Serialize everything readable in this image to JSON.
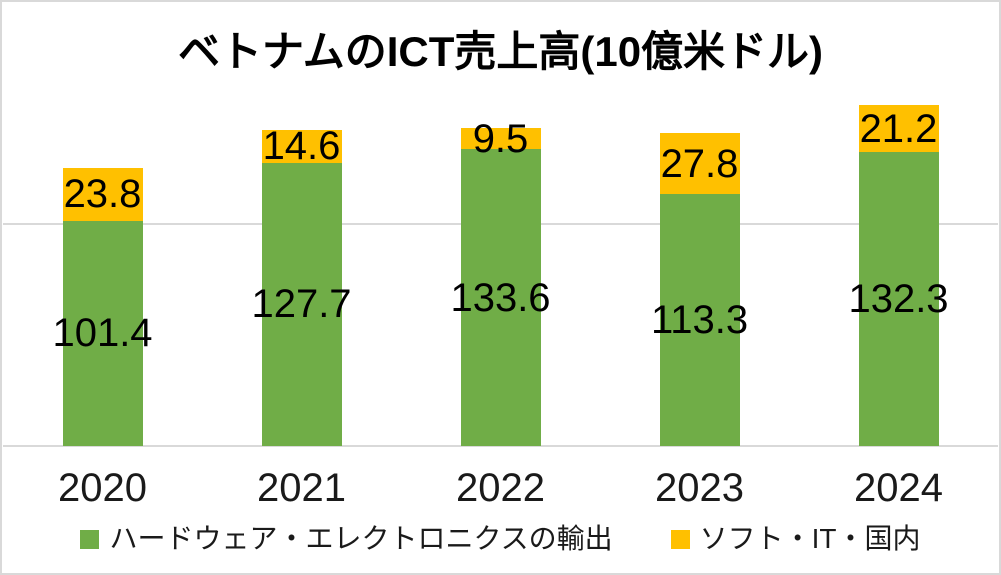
{
  "title": "ベトナムのICT売上高(10億米ドル)",
  "chart_data": {
    "type": "bar",
    "stacked": true,
    "title": "ベトナムのICT売上高(10億米ドル)",
    "categories": [
      "2020",
      "2021",
      "2022",
      "2023",
      "2024"
    ],
    "series": [
      {
        "name": "ハードウェア・エレクトロニクスの輸出",
        "color": "#70AD47",
        "values": [
          101.4,
          127.7,
          133.6,
          113.3,
          132.3
        ]
      },
      {
        "name": "ソフト・IT・国内",
        "color": "#FFC000",
        "values": [
          23.8,
          14.6,
          9.5,
          27.8,
          21.2
        ]
      }
    ],
    "xlabel": "",
    "ylabel": "",
    "ylim": [
      0,
      200
    ],
    "gridline_values": [
      100
    ],
    "grid": true,
    "legend_position": "bottom",
    "data_labels": true
  },
  "colors": {
    "grid": "#d9d9d9",
    "axis": "#d9d9d9",
    "frame_border": "#d9d9d9",
    "title_text": "#000000",
    "label_text": "#000000",
    "axis_text": "#1a1a1a",
    "background": "#ffffff"
  }
}
